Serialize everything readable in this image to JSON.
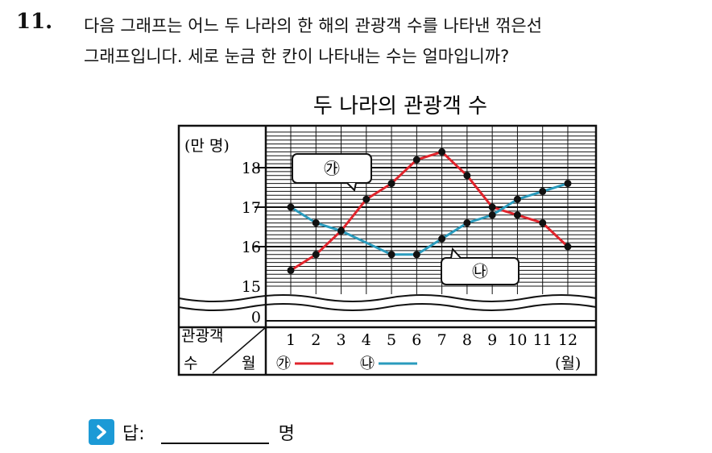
{
  "question": {
    "number": "11.",
    "line1": "다음 그래프는 어느 두 나라의 한 해의 관광객 수를 나타낸 꺾은선",
    "line2": "그래프입니다. 세로 눈금 한 칸이 나타내는 수는 얼마입니까?"
  },
  "answer": {
    "label": "답:",
    "unit": "명"
  },
  "colors": {
    "series_ga": "#e0242c",
    "series_na": "#2a9bbd",
    "line": "#111111"
  },
  "chart_data": {
    "type": "line",
    "title": "두 나라의 관광객 수",
    "ylabel": "(만 명)",
    "xlabel": "(월)",
    "corner_top": "관광객",
    "corner_bottom_left": "수",
    "corner_bottom_right": "월",
    "x": [
      1,
      2,
      3,
      4,
      5,
      6,
      7,
      8,
      9,
      10,
      11,
      12
    ],
    "x_tick_labels": [
      "1",
      "2",
      "3",
      "4",
      "5",
      "6",
      "7",
      "8",
      "9",
      "10",
      "11",
      "12"
    ],
    "y_tick_labels": [
      "18",
      "17",
      "16",
      "15",
      "0"
    ],
    "ylim": [
      15,
      18.9
    ],
    "y_axis_break": true,
    "grid": true,
    "series": [
      {
        "name": "㉮",
        "color": "#e0242c",
        "values": [
          15.4,
          15.8,
          16.4,
          17.2,
          17.6,
          18.2,
          18.4,
          17.8,
          17.0,
          16.8,
          16.6,
          16.0
        ]
      },
      {
        "name": "㉯",
        "color": "#2a9bbd",
        "values": [
          17.0,
          16.6,
          16.4,
          null,
          15.8,
          15.8,
          16.2,
          16.6,
          16.8,
          17.2,
          17.4,
          17.6
        ]
      }
    ],
    "callouts": [
      {
        "label": "㉮",
        "series": 0
      },
      {
        "label": "㉯",
        "series": 1
      }
    ]
  }
}
